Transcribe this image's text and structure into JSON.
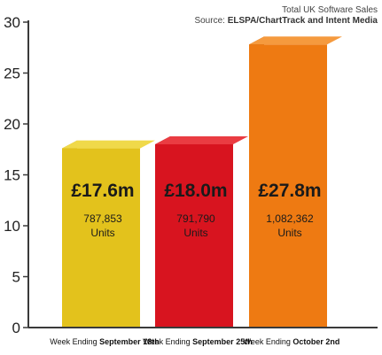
{
  "chart_data": {
    "type": "bar",
    "title": "Total UK Software Sales",
    "subtitle_prefix": "Source: ",
    "subtitle_source": "ELSPA/ChartTrack and Intent Media",
    "xlabel": "",
    "ylabel": "",
    "ylim": [
      0,
      30
    ],
    "yticks": [
      0,
      5,
      10,
      15,
      20,
      25,
      30
    ],
    "grid": false,
    "legend": "none",
    "categories": [
      {
        "prefix": "Week Ending ",
        "date": "September 18th"
      },
      {
        "prefix": "Week Ending ",
        "date": "September 25th"
      },
      {
        "prefix": "Week Ending ",
        "date": "October 2nd"
      }
    ],
    "values": [
      17.6,
      18.0,
      27.8
    ],
    "value_labels": [
      "£17.6m",
      "£18.0m",
      "£27.8m"
    ],
    "units": [
      "787,853",
      "791,790",
      "1,082,362"
    ],
    "units_suffix": "Units",
    "colors": [
      {
        "front": "#e3c21c",
        "side": "#b49612",
        "top": "#f0d94a"
      },
      {
        "front": "#d8141f",
        "side": "#9c0d15",
        "top": "#ea3c42"
      },
      {
        "front": "#ee7a12",
        "side": "#b8580a",
        "top": "#f59a3e"
      }
    ],
    "axis_color": "#3a3a3a"
  }
}
